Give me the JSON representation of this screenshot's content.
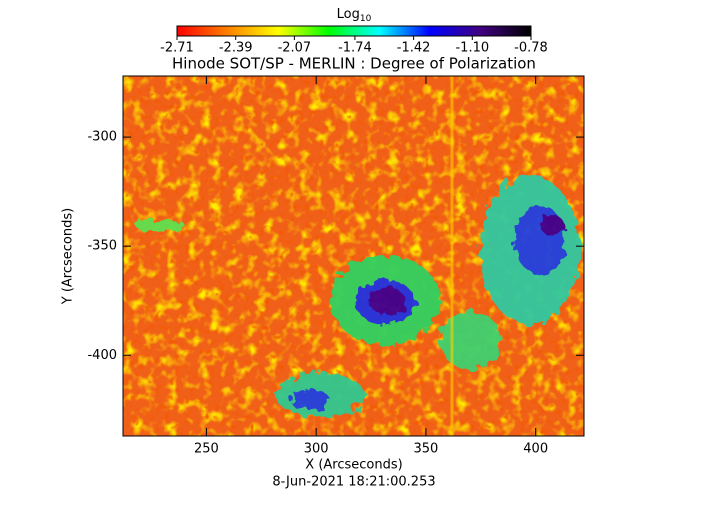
{
  "chart_data": {
    "type": "image",
    "title": "Hinode SOT/SP - MERLIN : Degree of Polarization",
    "colorbar": {
      "label": "Log",
      "label_sub": "10",
      "lim": [
        -2.71,
        -0.78
      ],
      "ticks": [
        -2.71,
        -2.39,
        -2.07,
        -1.74,
        -1.42,
        {
          "value": -1.1,
          "label": "-1.10"
        },
        -0.78
      ],
      "colormap": [
        "#ff0000",
        "#ff8000",
        "#ffff00",
        "#00ff00",
        "#00ffff",
        "#0000ff",
        "#400080",
        "#000000"
      ]
    },
    "x_label": "X (Arcseconds)",
    "y_label": "Y (Arcseconds)",
    "xlim": [
      212,
      422
    ],
    "xticks": [
      250,
      300,
      350,
      400
    ],
    "ylim": [
      -437,
      -272
    ],
    "yticks": [
      -300,
      -350,
      -400
    ],
    "footer": "8-Jun-2021 18:21:00.253"
  }
}
